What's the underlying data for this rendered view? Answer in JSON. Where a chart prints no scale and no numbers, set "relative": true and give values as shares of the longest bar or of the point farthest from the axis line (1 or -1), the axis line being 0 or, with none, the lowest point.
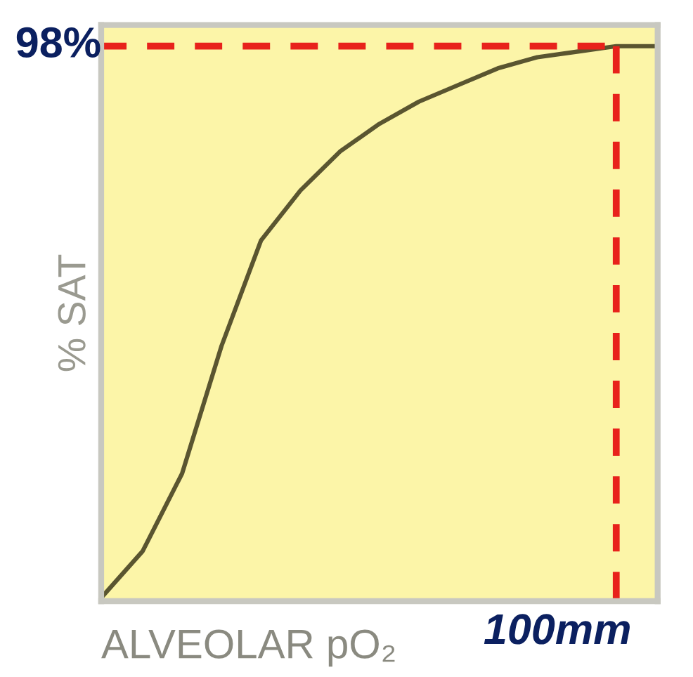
{
  "chart_data": {
    "type": "line",
    "relative": true,
    "xlabel": "ALVEOLAR pO₂",
    "ylabel": "% SAT",
    "categories": [
      null,
      null,
      null,
      null,
      null,
      null,
      null,
      null,
      null,
      null,
      null,
      null,
      null,
      null,
      null
    ],
    "series": [
      {
        "color": "#5a5530",
        "values": [
          0.01,
          0.09,
          0.23,
          0.46,
          0.65,
          0.74,
          0.81,
          0.86,
          0.9,
          0.93,
          0.96,
          0.98,
          0.99,
          1.0,
          1.0
        ]
      }
    ],
    "ref_lines": [
      {
        "axis": "y",
        "value": 1.0,
        "color": "#e8221b",
        "line_style": "dashed"
      }
    ],
    "annotations": [
      "98%",
      "100mm"
    ],
    "grid": false,
    "legend": false,
    "tick_labels": false,
    "marker": "none",
    "line_style": "solid"
  }
}
